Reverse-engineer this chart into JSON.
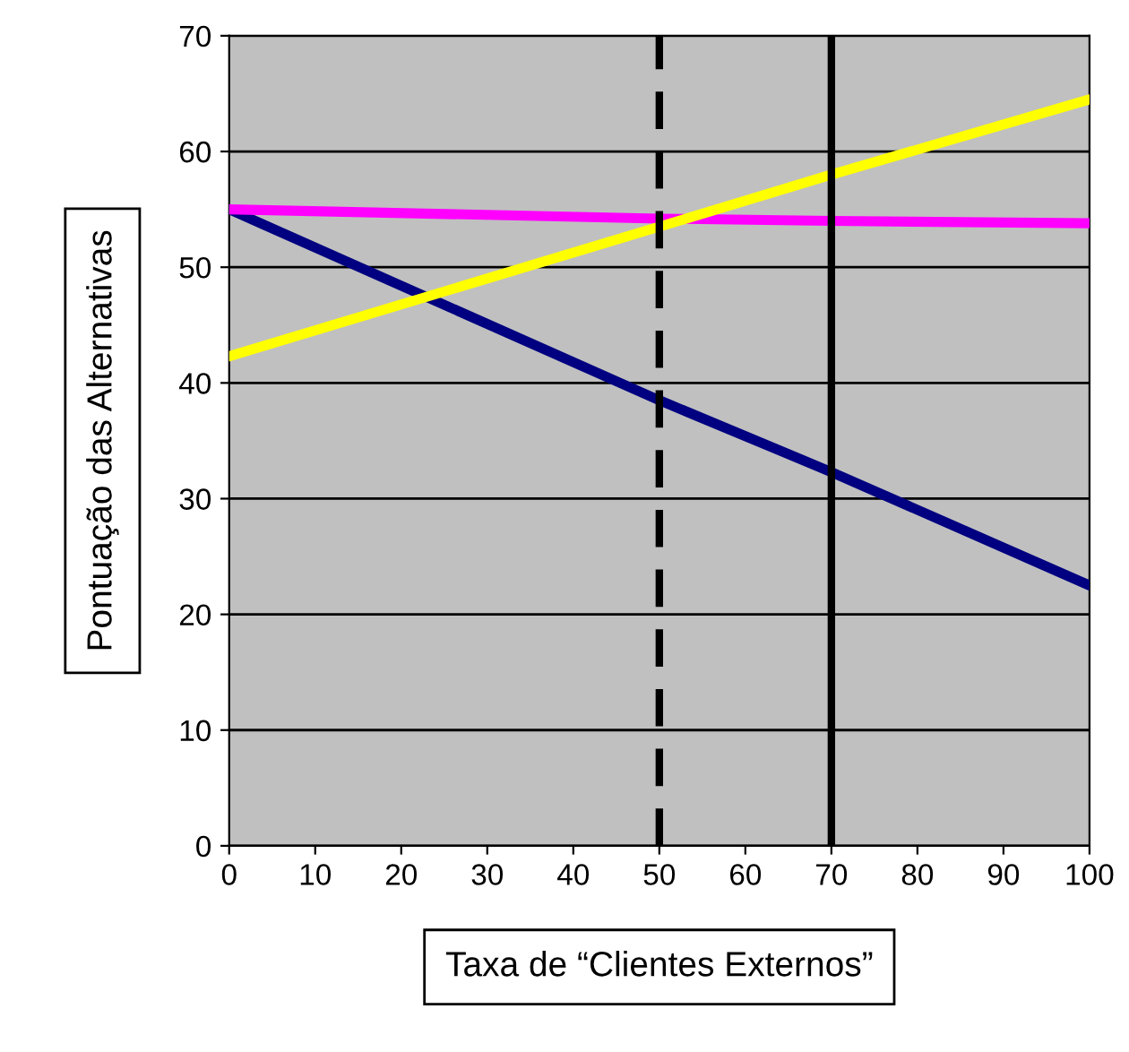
{
  "chart_data": {
    "type": "line",
    "xlabel": "Taxa de “Clientes Externos”",
    "ylabel": "Pontuação das Alternativas",
    "x": [
      0,
      50,
      70,
      100
    ],
    "series": [
      {
        "color": "#000080",
        "values": [
          55,
          38.5,
          32.3,
          22.5
        ]
      },
      {
        "color": "#ff00ff",
        "values": [
          55,
          54.2,
          54,
          53.8
        ]
      },
      {
        "color": "#ffff00",
        "values": [
          42.3,
          53.5,
          58,
          64.5
        ]
      }
    ],
    "xlim": [
      0,
      100
    ],
    "xticks": [
      0,
      10,
      20,
      30,
      40,
      50,
      60,
      70,
      80,
      90,
      100
    ],
    "ylim": [
      0,
      70
    ],
    "yticks": [
      0,
      10,
      20,
      30,
      40,
      50,
      60,
      70
    ],
    "ref_lines": [
      {
        "axis": "x",
        "value": 50,
        "color": "#000000",
        "line_style": "dashed"
      },
      {
        "axis": "x",
        "value": 70,
        "color": "#000000",
        "line_style": "solid"
      }
    ],
    "grid": "y",
    "legend": false
  }
}
